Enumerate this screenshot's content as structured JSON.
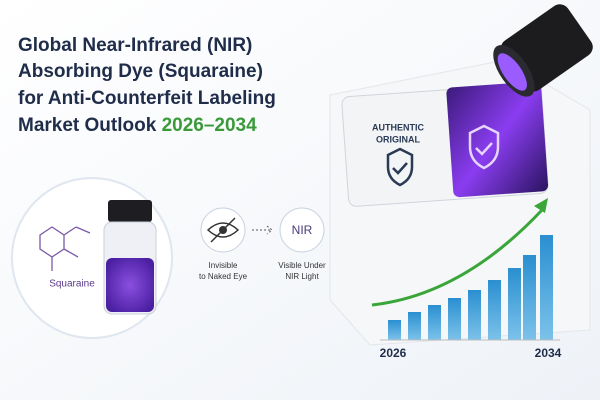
{
  "title": {
    "lines": [
      "Global Near-Infrared (NIR)",
      "Absorbing Dye (Squaraine)",
      "for Anti-Counterfeit Labeling",
      "Market Outlook"
    ],
    "years": "2026–2034"
  },
  "label": {
    "lines": [
      "AUTHENTIC",
      "ORIGINAL"
    ]
  },
  "compound": "Squaraine",
  "process": {
    "nir_icon": "NIR",
    "steps": [
      [
        "Invisible",
        "to Naked Eye"
      ],
      [
        "Visible Under",
        "NIR Light"
      ]
    ]
  },
  "growth": {
    "start": "2026",
    "end": "2034"
  }
}
